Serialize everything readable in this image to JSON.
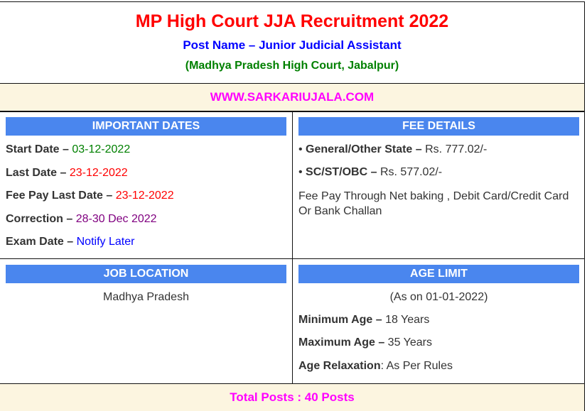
{
  "header": {
    "title": "MP High Court JJA Recruitment 2022",
    "post_name": "Post Name – Junior Judicial Assistant",
    "org": "(Madhya Pradesh High Court, Jabalpur)",
    "website": "WWW.SARKARIUJALA.COM"
  },
  "important_dates": {
    "heading": "IMPORTANT DATES",
    "items": [
      {
        "label": "Start Date –",
        "value": "03-12-2022",
        "color": "#008000"
      },
      {
        "label": "Last Date –",
        "value": "23-12-2022",
        "color": "#ff0000"
      },
      {
        "label": "Fee Pay Last Date –",
        "value": "23-12-2022",
        "color": "#ff0000"
      },
      {
        "label": "Correction –",
        "value": "28-30 Dec 2022",
        "color": "#800080"
      },
      {
        "label": "Exam Date –",
        "value": "Notify Later",
        "color": "#0000ff"
      }
    ]
  },
  "fee_details": {
    "heading": "FEE DETAILS",
    "items": [
      {
        "label": "General/Other State –",
        "value": "Rs. 777.02/-"
      },
      {
        "label": "SC/ST/OBC –",
        "value": "Rs. 577.02/-"
      }
    ],
    "note": "Fee Pay Through Net baking , Debit Card/Credit Card Or Bank Challan"
  },
  "job_location": {
    "heading": "JOB LOCATION",
    "value": "Madhya Pradesh"
  },
  "age_limit": {
    "heading": "AGE LIMIT",
    "as_on": "(As on 01-01-2022)",
    "items": [
      {
        "label": "Minimum Age –",
        "value": "18 Years"
      },
      {
        "label": "Maximum Age –",
        "value": "35 Years"
      },
      {
        "label": "Age Relaxation",
        "value": ": As Per Rules"
      }
    ]
  },
  "footer": {
    "total_posts": "Total Posts : 40 Posts"
  },
  "colors": {
    "title": "#ff0000",
    "post": "#0000ff",
    "org": "#008000",
    "website": "#ff00ff",
    "header_bg": "#4a86ee",
    "cream": "#fcf5e0"
  }
}
